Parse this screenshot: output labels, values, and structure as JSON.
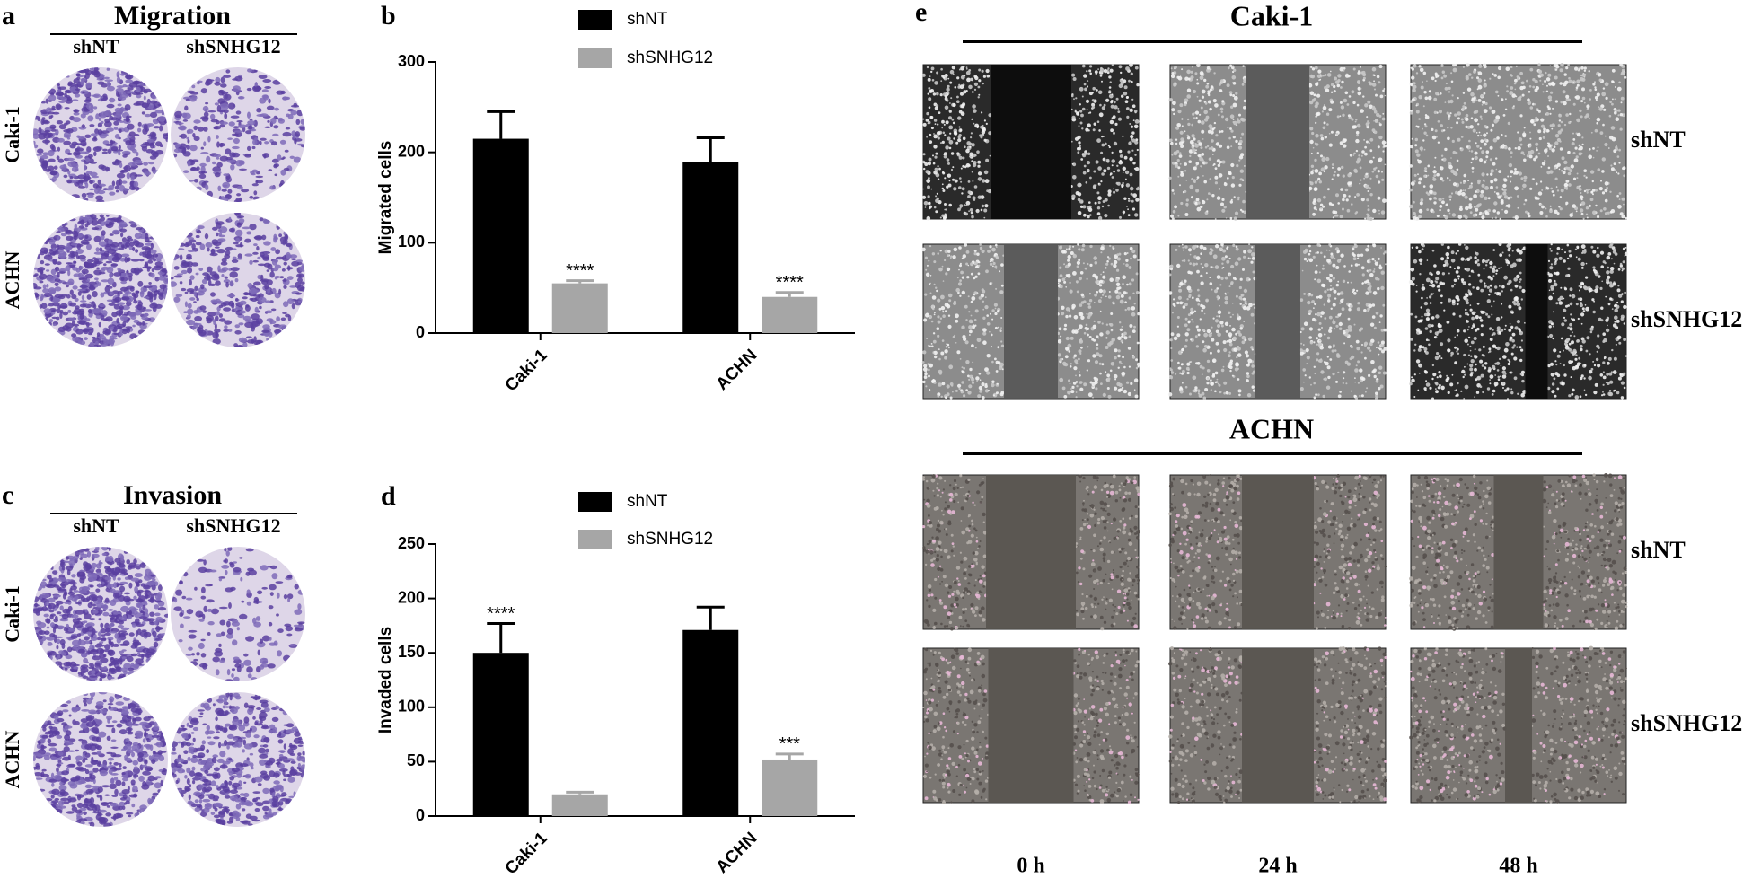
{
  "panels": {
    "a": {
      "label": "a",
      "title": "Migration",
      "columns": [
        "shNT",
        "shSNHG12"
      ],
      "rows": [
        "Caki-1",
        "ACHN"
      ]
    },
    "c": {
      "label": "c",
      "title": "Invasion",
      "columns": [
        "shNT",
        "shSNHG12"
      ],
      "rows": [
        "Caki-1",
        "ACHN"
      ]
    },
    "e": {
      "label": "e",
      "groups": [
        {
          "title": "Caki-1",
          "rows": [
            "shNT",
            "shSNHG12"
          ]
        },
        {
          "title": "ACHN",
          "rows": [
            "shNT",
            "shSNHG12"
          ]
        }
      ],
      "columns": [
        "0 h",
        "24 h",
        "48 h"
      ]
    }
  },
  "chart_data": [
    {
      "type": "bar",
      "panel_label": "b",
      "y_label": "Migrated cells",
      "categories": [
        "Caki-1",
        "ACHN"
      ],
      "series": [
        {
          "name": "shNT",
          "color": "#000000",
          "values": [
            215,
            189
          ],
          "errors": [
            30,
            27
          ],
          "significance": [
            null,
            null
          ]
        },
        {
          "name": "shSNHG12",
          "color": "#a6a6a6",
          "values": [
            55,
            40
          ],
          "errors": [
            3,
            5
          ],
          "significance": [
            "****",
            "****"
          ]
        }
      ],
      "ylim": [
        0,
        300
      ],
      "yticks": [
        0,
        100,
        200,
        300
      ]
    },
    {
      "type": "bar",
      "panel_label": "d",
      "y_label": "Invaded cells",
      "categories": [
        "Caki-1",
        "ACHN"
      ],
      "series": [
        {
          "name": "shNT",
          "color": "#000000",
          "values": [
            150,
            171
          ],
          "errors": [
            27,
            21
          ],
          "significance": [
            "****",
            null
          ]
        },
        {
          "name": "shSNHG12",
          "color": "#a6a6a6",
          "values": [
            20,
            52
          ],
          "errors": [
            2,
            5
          ],
          "significance": [
            null,
            "***"
          ]
        }
      ],
      "ylim": [
        0,
        250
      ],
      "yticks": [
        0,
        50,
        100,
        150,
        200,
        250
      ]
    }
  ]
}
